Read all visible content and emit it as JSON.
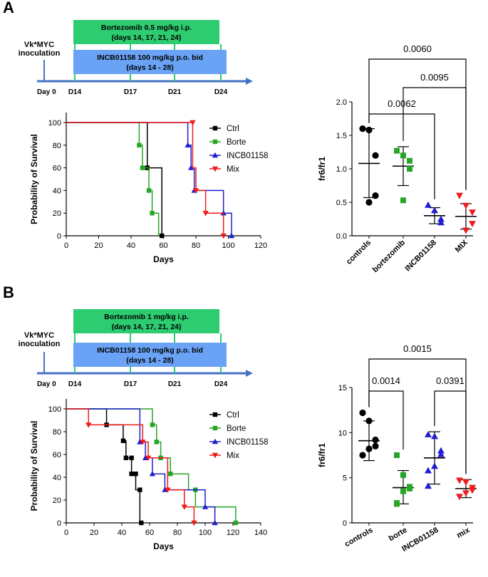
{
  "colors": {
    "green": "#27a527",
    "green_box": "#2ecc71",
    "blue_box": "#6aa3f5",
    "axis_arrow": "#4472c4",
    "black": "#000000",
    "blue": "#1f1fd0",
    "red": "#ee1c1c",
    "ctrl": "#000000"
  },
  "panels": [
    {
      "label": "A",
      "timeline": {
        "start_label": "Vk*MYC\ninoculation",
        "day0_label": "Day 0",
        "days": [
          "D14",
          "D17",
          "D21",
          "D24"
        ],
        "drug1_line1": "Bortezomib 0.5 mg/kg i.p.",
        "drug1_line2": "(days 14, 17, 21, 24)",
        "drug2_line1": "INCB01158 100 mg/kg p.o. bid",
        "drug2_line2": "(days 14 - 28)"
      },
      "survival": {
        "type": "line",
        "ylabel": "Probability of Survival",
        "xlabel": "Days",
        "xlim": [
          0,
          120
        ],
        "ylim": [
          0,
          100
        ],
        "xticks": [
          0,
          20,
          40,
          60,
          80,
          100,
          120
        ],
        "yticks": [
          0,
          20,
          40,
          60,
          80,
          100
        ],
        "legend": [
          "Ctrl",
          "Borte",
          "INCB01158",
          "Mix"
        ],
        "series": [
          {
            "name": "Ctrl",
            "marker": "square",
            "color": "#000000",
            "steps": [
              [
                0,
                100
              ],
              [
                50,
                100
              ],
              [
                50,
                60
              ],
              [
                59,
                60
              ],
              [
                59,
                0
              ],
              [
                60,
                0
              ]
            ],
            "points": [
              [
                50,
                60
              ],
              [
                59,
                0
              ]
            ]
          },
          {
            "name": "Borte",
            "marker": "square",
            "color": "#27a527",
            "steps": [
              [
                0,
                100
              ],
              [
                45,
                100
              ],
              [
                45,
                80
              ],
              [
                47,
                80
              ],
              [
                47,
                60
              ],
              [
                51,
                60
              ],
              [
                51,
                40
              ],
              [
                53,
                40
              ],
              [
                53,
                20
              ],
              [
                57,
                20
              ],
              [
                57,
                0
              ]
            ],
            "points": [
              [
                45,
                80
              ],
              [
                47,
                60
              ],
              [
                51,
                40
              ],
              [
                53,
                20
              ]
            ]
          },
          {
            "name": "INCB01158",
            "marker": "triangle-up",
            "color": "#1f1fd0",
            "steps": [
              [
                0,
                100
              ],
              [
                75,
                100
              ],
              [
                75,
                80
              ],
              [
                77,
                80
              ],
              [
                77,
                60
              ],
              [
                79,
                60
              ],
              [
                79,
                40
              ],
              [
                97,
                40
              ],
              [
                97,
                20
              ],
              [
                102,
                20
              ],
              [
                102,
                0
              ]
            ],
            "points": [
              [
                75,
                80
              ],
              [
                77,
                60
              ],
              [
                79,
                40
              ],
              [
                97,
                20
              ],
              [
                102,
                0
              ]
            ]
          },
          {
            "name": "Mix",
            "marker": "triangle-down",
            "color": "#ee1c1c",
            "steps": [
              [
                0,
                100
              ],
              [
                78,
                100
              ],
              [
                78,
                60
              ],
              [
                80,
                60
              ],
              [
                80,
                40
              ],
              [
                86,
                40
              ],
              [
                86,
                20
              ],
              [
                97,
                20
              ],
              [
                97,
                0
              ]
            ],
            "points": [
              [
                78,
                100
              ],
              [
                80,
                40
              ],
              [
                86,
                20
              ],
              [
                97,
                0
              ]
            ]
          }
        ]
      },
      "scatter": {
        "type": "scatter",
        "ylabel": "fr6/fr1",
        "ylim": [
          0,
          2.0
        ],
        "yticks": [
          "0.0",
          "0.5",
          "1.0",
          "1.5",
          "2.0"
        ],
        "ytick_values": [
          0,
          0.5,
          1.0,
          1.5,
          2.0
        ],
        "categories": [
          "controls",
          "bortezomib",
          "INCB01158",
          "MIX"
        ],
        "groups": [
          {
            "name": "controls",
            "marker": "circle",
            "color": "#000000",
            "points": [
              1.6,
              1.58,
              1.2,
              0.6,
              0.5
            ],
            "mean": 1.08,
            "sd_low": 0.57,
            "sd_high": 1.6
          },
          {
            "name": "bortezomib",
            "marker": "square",
            "color": "#27a527",
            "points": [
              1.27,
              1.2,
              1.12,
              1.0,
              0.53
            ],
            "mean": 1.04,
            "sd_low": 0.75,
            "sd_high": 1.33
          },
          {
            "name": "INCB01158",
            "marker": "triangle-up",
            "color": "#1f1fd0",
            "points": [
              0.46,
              0.38,
              0.25,
              0.2
            ],
            "mean": 0.3,
            "sd_low": 0.18,
            "sd_high": 0.42
          },
          {
            "name": "MIX",
            "marker": "triangle-down",
            "color": "#ee1c1c",
            "points": [
              0.6,
              0.45,
              0.35,
              0.18,
              0.08
            ],
            "mean": 0.29,
            "sd_low": 0.1,
            "sd_high": 0.48
          }
        ],
        "brackets": [
          {
            "from": 0,
            "to": 3,
            "p": "0.0060",
            "level": 0
          },
          {
            "from": 1,
            "to": 3,
            "p": "0.0095",
            "level": 1
          },
          {
            "from": 0,
            "to": 2,
            "p": "0.0062",
            "level": 2
          }
        ]
      }
    },
    {
      "label": "B",
      "timeline": {
        "start_label": "Vk*MYC\ninoculation",
        "day0_label": "Day 0",
        "days": [
          "D14",
          "D17",
          "D21",
          "D24"
        ],
        "drug1_line1": "Bortezomib 1 mg/kg i.p.",
        "drug1_line2": "(days 14, 17, 21, 24)",
        "drug2_line1": "INCB01158 100 mg/kg p.o. bid",
        "drug2_line2": "(days 14 - 28)"
      },
      "survival": {
        "type": "line",
        "ylabel": "Probability of Survival",
        "xlabel": "Days",
        "xlim": [
          0,
          140
        ],
        "ylim": [
          0,
          100
        ],
        "xticks": [
          0,
          20,
          40,
          60,
          80,
          100,
          120,
          140
        ],
        "yticks": [
          0,
          20,
          40,
          60,
          80,
          100
        ],
        "legend": [
          "Ctrl",
          "Borte",
          "INCB01158",
          "Mix"
        ],
        "series": [
          {
            "name": "Ctrl",
            "marker": "square",
            "color": "#000000",
            "steps": [
              [
                0,
                100
              ],
              [
                29,
                100
              ],
              [
                29,
                86
              ],
              [
                41,
                86
              ],
              [
                41,
                72
              ],
              [
                43,
                72
              ],
              [
                43,
                57
              ],
              [
                47,
                57
              ],
              [
                47,
                43
              ],
              [
                50,
                43
              ],
              [
                50,
                29
              ],
              [
                53,
                29
              ],
              [
                53,
                0
              ],
              [
                55,
                0
              ]
            ],
            "points": [
              [
                29,
                86
              ],
              [
                41,
                72
              ],
              [
                43,
                57
              ],
              [
                47,
                57
              ],
              [
                47,
                43
              ],
              [
                50,
                43
              ],
              [
                53,
                29
              ],
              [
                54,
                0
              ]
            ]
          },
          {
            "name": "Borte",
            "marker": "square",
            "color": "#27a527",
            "steps": [
              [
                0,
                100
              ],
              [
                62,
                100
              ],
              [
                62,
                86
              ],
              [
                65,
                86
              ],
              [
                65,
                71
              ],
              [
                68,
                71
              ],
              [
                68,
                57
              ],
              [
                75,
                57
              ],
              [
                75,
                43
              ],
              [
                88,
                43
              ],
              [
                88,
                29
              ],
              [
                93,
                29
              ],
              [
                93,
                14
              ],
              [
                122,
                14
              ],
              [
                122,
                0
              ]
            ],
            "points": [
              [
                62,
                86
              ],
              [
                65,
                71
              ],
              [
                68,
                57
              ],
              [
                75,
                43
              ],
              [
                93,
                29
              ],
              [
                122,
                0
              ]
            ]
          },
          {
            "name": "INCB01158",
            "marker": "triangle-up",
            "color": "#1f1fd0",
            "steps": [
              [
                0,
                100
              ],
              [
                53,
                100
              ],
              [
                53,
                71
              ],
              [
                57,
                71
              ],
              [
                57,
                57
              ],
              [
                62,
                57
              ],
              [
                62,
                43
              ],
              [
                71,
                43
              ],
              [
                71,
                29
              ],
              [
                100,
                29
              ],
              [
                100,
                14
              ],
              [
                107,
                14
              ],
              [
                107,
                0
              ]
            ],
            "points": [
              [
                53,
                71
              ],
              [
                57,
                57
              ],
              [
                62,
                43
              ],
              [
                71,
                29
              ],
              [
                100,
                14
              ],
              [
                107,
                0
              ]
            ]
          },
          {
            "name": "Mix",
            "marker": "triangle-down",
            "color": "#ee1c1c",
            "steps": [
              [
                0,
                100
              ],
              [
                16,
                100
              ],
              [
                16,
                86
              ],
              [
                55,
                86
              ],
              [
                55,
                71
              ],
              [
                59,
                71
              ],
              [
                59,
                57
              ],
              [
                73,
                57
              ],
              [
                73,
                29
              ],
              [
                85,
                29
              ],
              [
                85,
                14
              ],
              [
                92,
                14
              ],
              [
                92,
                0
              ]
            ],
            "points": [
              [
                16,
                86
              ],
              [
                55,
                71
              ],
              [
                59,
                57
              ],
              [
                73,
                29
              ],
              [
                85,
                14
              ],
              [
                92,
                0
              ]
            ]
          }
        ]
      },
      "scatter": {
        "type": "scatter",
        "ylabel": "fr6/fr1",
        "ylim": [
          0,
          15
        ],
        "yticks": [
          "0",
          "5",
          "10",
          "15"
        ],
        "ytick_values": [
          0,
          5,
          10,
          15
        ],
        "categories": [
          "controls",
          "borte",
          "INCB01158",
          "mix"
        ],
        "groups": [
          {
            "name": "controls",
            "marker": "circle",
            "color": "#000000",
            "points": [
              12.2,
              11.3,
              9.2,
              8.5,
              8.2,
              7.5
            ],
            "mean": 9.1,
            "sd_low": 6.9,
            "sd_high": 11.3
          },
          {
            "name": "borte",
            "marker": "square",
            "color": "#27a527",
            "points": [
              7.5,
              5.3,
              4.0,
              3.8,
              3.5,
              2.2,
              2.1
            ],
            "mean": 3.9,
            "sd_low": 2.1,
            "sd_high": 5.8
          },
          {
            "name": "INCB01158",
            "marker": "triangle-up",
            "color": "#1f1fd0",
            "points": [
              9.8,
              9.6,
              8.0,
              7.6,
              6.3,
              5.8,
              4.1
            ],
            "mean": 7.2,
            "sd_low": 4.3,
            "sd_high": 10.1
          },
          {
            "name": "mix",
            "marker": "triangle-down",
            "color": "#ee1c1c",
            "points": [
              4.7,
              4.5,
              3.9,
              3.6,
              3.3,
              2.9
            ],
            "mean": 3.8,
            "sd_low": 2.8,
            "sd_high": 4.8
          }
        ],
        "brackets": [
          {
            "from": 0,
            "to": 3,
            "p": "0.0015",
            "level": 0
          },
          {
            "from": 0,
            "to": 1,
            "p": "0.0014",
            "level": 1
          },
          {
            "from": 2,
            "to": 3,
            "p": "0.0391",
            "level": 1
          }
        ]
      }
    }
  ]
}
